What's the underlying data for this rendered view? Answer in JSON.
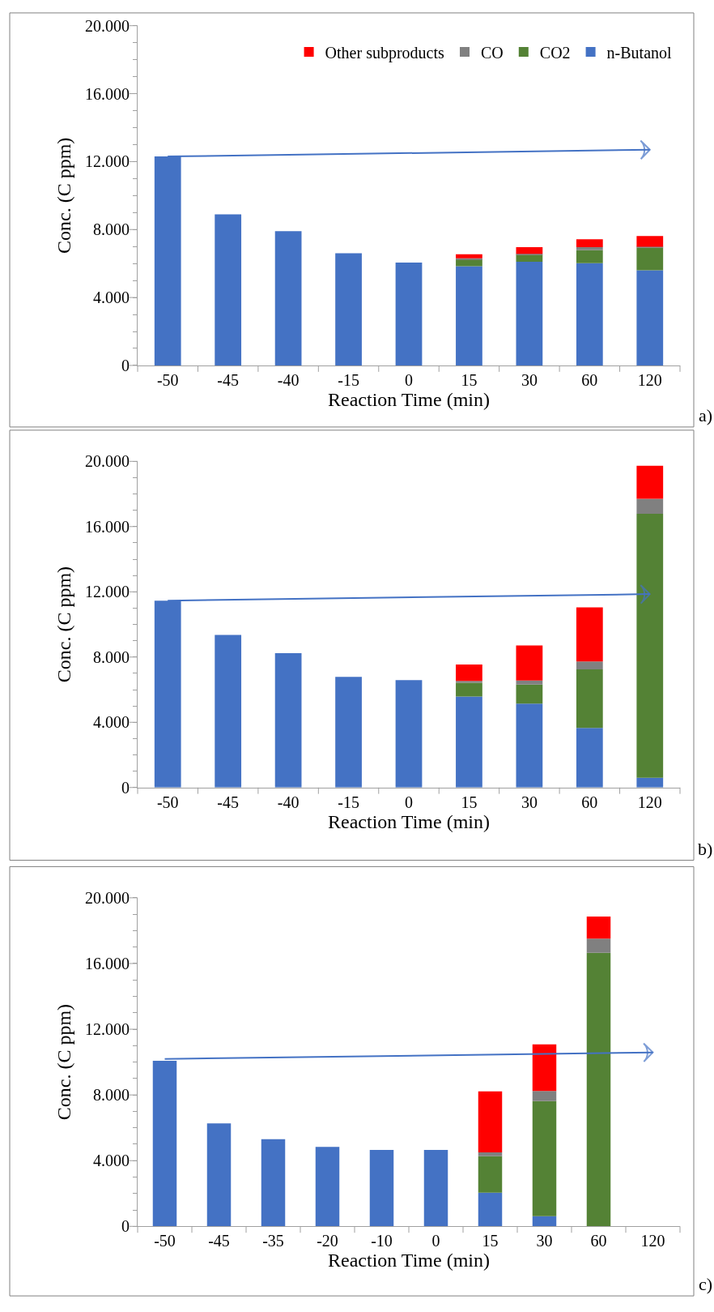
{
  "chart_data": [
    {
      "type": "bar",
      "stacked": true,
      "xlabel": "Reaction Time (min)",
      "ylabel": "Conc. (C ppm)",
      "legend": "top right",
      "annotations": [
        "a)"
      ],
      "categories": [
        "-50",
        "-45",
        "-40",
        "-15",
        "0",
        "15",
        "30",
        "60",
        "120"
      ],
      "ylim": [
        0,
        20000
      ],
      "yticks": [
        0,
        {
          "value": 1000,
          "label": null
        },
        {
          "value": 2000,
          "label": null
        },
        {
          "value": 3000,
          "label": null
        },
        {
          "value": 4000,
          "label": "4.000"
        },
        {
          "value": 5000,
          "label": null
        },
        {
          "value": 6000,
          "label": null
        },
        {
          "value": 7000,
          "label": null
        },
        {
          "value": 8000,
          "label": "8.000"
        },
        {
          "value": 9000,
          "label": null
        },
        {
          "value": 10000,
          "label": null
        },
        {
          "value": 11000,
          "label": null
        },
        {
          "value": 12000,
          "label": "12.000"
        },
        {
          "value": 13000,
          "label": null
        },
        {
          "value": 14000,
          "label": null
        },
        {
          "value": 15000,
          "label": null
        },
        {
          "value": 16000,
          "label": "16.000"
        },
        {
          "value": 17000,
          "label": null
        },
        {
          "value": 18000,
          "label": null
        },
        {
          "value": 19000,
          "label": null
        },
        {
          "value": 20000,
          "label": "20.000"
        }
      ],
      "series": [
        {
          "name": "n-Butanol",
          "color": "#4472c4",
          "values": [
            12300,
            8900,
            7900,
            6600,
            6050,
            5840,
            6100,
            6020,
            5600
          ]
        },
        {
          "name": "CO2",
          "color": "#548235",
          "values": [
            null,
            null,
            null,
            null,
            null,
            420,
            420,
            760,
            1340
          ]
        },
        {
          "name": "CO",
          "color": "#808080",
          "values": [
            null,
            null,
            null,
            null,
            null,
            50,
            50,
            180,
            50
          ]
        },
        {
          "name": "Other subproducts",
          "color": "#ff0000",
          "values": [
            null,
            null,
            null,
            null,
            null,
            230,
            390,
            470,
            630
          ]
        },
        {
          "type": "line",
          "color": "#4472c4",
          "x": [
            "-50",
            "120"
          ],
          "values": [
            12300,
            12700
          ]
        }
      ]
    },
    {
      "type": "bar",
      "stacked": true,
      "xlabel": "Reaction Time (min)",
      "ylabel": "Conc. (C ppm)",
      "annotations": [
        "b)"
      ],
      "categories": [
        "-50",
        "-45",
        "-40",
        "-15",
        "0",
        "15",
        "30",
        "60",
        "120"
      ],
      "ylim": [
        0,
        20000
      ],
      "yticks": [
        0,
        {
          "value": 1000,
          "label": null
        },
        {
          "value": 2000,
          "label": null
        },
        {
          "value": 3000,
          "label": null
        },
        {
          "value": 4000,
          "label": "4.000"
        },
        {
          "value": 5000,
          "label": null
        },
        {
          "value": 6000,
          "label": null
        },
        {
          "value": 7000,
          "label": null
        },
        {
          "value": 8000,
          "label": "8.000"
        },
        {
          "value": 9000,
          "label": null
        },
        {
          "value": 10000,
          "label": null
        },
        {
          "value": 11000,
          "label": null
        },
        {
          "value": 12000,
          "label": "12.000"
        },
        {
          "value": 13000,
          "label": null
        },
        {
          "value": 14000,
          "label": null
        },
        {
          "value": 15000,
          "label": null
        },
        {
          "value": 16000,
          "label": "16.000"
        },
        {
          "value": 17000,
          "label": null
        },
        {
          "value": 18000,
          "label": null
        },
        {
          "value": 19000,
          "label": null
        },
        {
          "value": 20000,
          "label": "20.000"
        }
      ],
      "series": [
        {
          "color": "#4472c4",
          "values": [
            11460,
            9360,
            8240,
            6780,
            6590,
            5580,
            5140,
            3650,
            600
          ]
        },
        {
          "color": "#548235",
          "values": [
            null,
            null,
            null,
            null,
            null,
            840,
            1170,
            3590,
            16190
          ]
        },
        {
          "color": "#808080",
          "values": [
            null,
            null,
            null,
            null,
            null,
            110,
            250,
            490,
            920
          ]
        },
        {
          "color": "#ff0000",
          "values": [
            null,
            null,
            null,
            null,
            null,
            1010,
            2150,
            3320,
            2020
          ]
        },
        {
          "type": "line",
          "color": "#4472c4",
          "x": [
            "-50",
            "120"
          ],
          "values": [
            11460,
            11860
          ]
        }
      ]
    },
    {
      "type": "bar",
      "stacked": true,
      "xlabel": "Reaction Time (min)",
      "ylabel": "Conc. (C ppm)",
      "annotations": [
        "c)"
      ],
      "categories": [
        "-50",
        "-45",
        "-35",
        "-20",
        "-10",
        "0",
        "15",
        "30",
        "60",
        "120"
      ],
      "ylim": [
        0,
        20000
      ],
      "yticks": [
        0,
        {
          "value": 1000,
          "label": null
        },
        {
          "value": 2000,
          "label": null
        },
        {
          "value": 3000,
          "label": null
        },
        {
          "value": 4000,
          "label": "4.000"
        },
        {
          "value": 5000,
          "label": null
        },
        {
          "value": 6000,
          "label": null
        },
        {
          "value": 7000,
          "label": null
        },
        {
          "value": 8000,
          "label": "8.000"
        },
        {
          "value": 9000,
          "label": null
        },
        {
          "value": 10000,
          "label": null
        },
        {
          "value": 11000,
          "label": null
        },
        {
          "value": 12000,
          "label": "12.000"
        },
        {
          "value": 13000,
          "label": null
        },
        {
          "value": 14000,
          "label": null
        },
        {
          "value": 15000,
          "label": null
        },
        {
          "value": 16000,
          "label": "16.000"
        },
        {
          "value": 17000,
          "label": null
        },
        {
          "value": 18000,
          "label": null
        },
        {
          "value": 19000,
          "label": null
        },
        {
          "value": 20000,
          "label": "20.000"
        }
      ],
      "series": [
        {
          "color": "#4472c4",
          "values": [
            10080,
            6270,
            5300,
            4840,
            4650,
            4650,
            2050,
            620,
            null,
            null
          ]
        },
        {
          "color": "#548235",
          "values": [
            null,
            null,
            null,
            null,
            null,
            null,
            2220,
            7000,
            16650,
            null
          ]
        },
        {
          "color": "#808080",
          "values": [
            null,
            null,
            null,
            null,
            null,
            null,
            240,
            620,
            860,
            null
          ]
        },
        {
          "color": "#ff0000",
          "values": [
            null,
            null,
            null,
            null,
            null,
            null,
            3710,
            2840,
            1350,
            null
          ]
        },
        {
          "type": "line",
          "color": "#4472c4",
          "x": [
            "-50",
            "120"
          ],
          "values": [
            10190,
            10590
          ]
        }
      ]
    }
  ]
}
